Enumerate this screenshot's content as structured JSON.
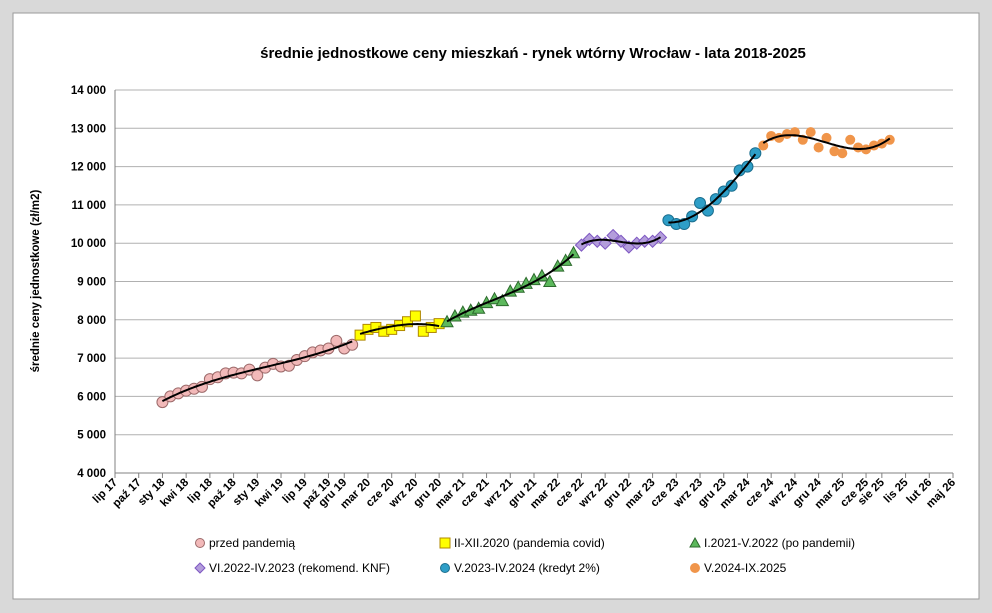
{
  "chart_data": {
    "type": "scatter",
    "title": "średnie jednostkowe ceny mieszkań - rynek wtórny Wrocław - lata 2018-2025",
    "y_label": "średnie ceny jednostkowe (zł/m2)",
    "ylim": [
      4000,
      14000
    ],
    "yticks": [
      {
        "value": 4000,
        "label": "4 000"
      },
      {
        "value": 5000,
        "label": "5 000"
      },
      {
        "value": 6000,
        "label": "6 000"
      },
      {
        "value": 7000,
        "label": "7 000"
      },
      {
        "value": 8000,
        "label": "8 000"
      },
      {
        "value": 9000,
        "label": "9 000"
      },
      {
        "value": 10000,
        "label": "10 000"
      },
      {
        "value": 11000,
        "label": "11 000"
      },
      {
        "value": 12000,
        "label": "12 000"
      },
      {
        "value": 13000,
        "label": "13 000"
      },
      {
        "value": 14000,
        "label": "14 000"
      }
    ],
    "xlim": [
      "2017-07",
      "2026-05"
    ],
    "xticks": [
      {
        "value": "2017-07",
        "label": "lip 17"
      },
      {
        "value": "2017-10",
        "label": "paź 17"
      },
      {
        "value": "2018-01",
        "label": "sty 18"
      },
      {
        "value": "2018-04",
        "label": "kwi 18"
      },
      {
        "value": "2018-07",
        "label": "lip 18"
      },
      {
        "value": "2018-10",
        "label": "paź 18"
      },
      {
        "value": "2019-01",
        "label": "sty 19"
      },
      {
        "value": "2019-04",
        "label": "kwi 19"
      },
      {
        "value": "2019-07",
        "label": "lip 19"
      },
      {
        "value": "2019-10",
        "label": "paź 19"
      },
      {
        "value": "2019-12",
        "label": "gru 19"
      },
      {
        "value": "2020-03",
        "label": "mar 20"
      },
      {
        "value": "2020-06",
        "label": "cze 20"
      },
      {
        "value": "2020-09",
        "label": "wrz 20"
      },
      {
        "value": "2020-12",
        "label": "gru 20"
      },
      {
        "value": "2021-03",
        "label": "mar 21"
      },
      {
        "value": "2021-06",
        "label": "cze 21"
      },
      {
        "value": "2021-09",
        "label": "wrz 21"
      },
      {
        "value": "2021-12",
        "label": "gru 21"
      },
      {
        "value": "2022-03",
        "label": "mar 22"
      },
      {
        "value": "2022-06",
        "label": "cze 22"
      },
      {
        "value": "2022-09",
        "label": "wrz 22"
      },
      {
        "value": "2022-12",
        "label": "gru 22"
      },
      {
        "value": "2023-03",
        "label": "mar 23"
      },
      {
        "value": "2023-06",
        "label": "cze 23"
      },
      {
        "value": "2023-09",
        "label": "wrz 23"
      },
      {
        "value": "2023-12",
        "label": "gru 23"
      },
      {
        "value": "2024-03",
        "label": "mar 24"
      },
      {
        "value": "2024-06",
        "label": "cze 24"
      },
      {
        "value": "2024-09",
        "label": "wrz 24"
      },
      {
        "value": "2024-12",
        "label": "gru 24"
      },
      {
        "value": "2025-03",
        "label": "mar 25"
      },
      {
        "value": "2025-06",
        "label": "cze 25"
      },
      {
        "value": "2025-08",
        "label": "sie 25"
      },
      {
        "value": "2025-11",
        "label": "lis 25"
      },
      {
        "value": "2026-02",
        "label": "lut 26"
      },
      {
        "value": "2026-05",
        "label": "maj 26"
      }
    ],
    "grid": true,
    "trendline": true,
    "series": [
      {
        "name": "przed pandemią",
        "marker": "circle",
        "color": "#f2b9b9",
        "edgecolor": "#9c6a6a",
        "x": [
          "2018-01",
          "2018-02",
          "2018-03",
          "2018-04",
          "2018-05",
          "2018-06",
          "2018-07",
          "2018-08",
          "2018-09",
          "2018-10",
          "2018-11",
          "2018-12",
          "2019-01",
          "2019-02",
          "2019-03",
          "2019-04",
          "2019-05",
          "2019-06",
          "2019-07",
          "2019-08",
          "2019-09",
          "2019-10",
          "2019-11",
          "2019-12",
          "2020-01"
        ],
        "values": [
          5850,
          6000,
          6080,
          6150,
          6200,
          6250,
          6450,
          6500,
          6600,
          6620,
          6600,
          6700,
          6550,
          6750,
          6850,
          6780,
          6800,
          6950,
          7050,
          7150,
          7200,
          7250,
          7450,
          7250,
          7350
        ]
      },
      {
        "name": "II-XII.2020 (pandemia covid)",
        "marker": "square",
        "color": "#ffff00",
        "edgecolor": "#b08800",
        "x": [
          "2020-02",
          "2020-03",
          "2020-04",
          "2020-05",
          "2020-06",
          "2020-07",
          "2020-08",
          "2020-09",
          "2020-10",
          "2020-11",
          "2020-12"
        ],
        "values": [
          7600,
          7750,
          7800,
          7700,
          7750,
          7850,
          7950,
          8100,
          7700,
          7800,
          7900
        ]
      },
      {
        "name": "I.2021-V.2022 (po pandemii)",
        "marker": "triangle",
        "color": "#5cb85c",
        "edgecolor": "#2d6a2d",
        "x": [
          "2021-01",
          "2021-02",
          "2021-03",
          "2021-04",
          "2021-05",
          "2021-06",
          "2021-07",
          "2021-08",
          "2021-09",
          "2021-10",
          "2021-11",
          "2021-12",
          "2022-01",
          "2022-02",
          "2022-03",
          "2022-04",
          "2022-05"
        ],
        "values": [
          7950,
          8100,
          8200,
          8250,
          8300,
          8450,
          8550,
          8500,
          8750,
          8850,
          8950,
          9050,
          9150,
          9000,
          9400,
          9550,
          9750
        ]
      },
      {
        "name": "VI.2022-IV.2023 (rekomend. KNF)",
        "marker": "diamond",
        "color": "#b39ddb",
        "edgecolor": "#7e57c2",
        "x": [
          "2022-06",
          "2022-07",
          "2022-08",
          "2022-09",
          "2022-10",
          "2022-11",
          "2022-12",
          "2023-01",
          "2023-02",
          "2023-03",
          "2023-04"
        ],
        "values": [
          9950,
          10100,
          10050,
          10000,
          10200,
          10050,
          9900,
          10000,
          10050,
          10050,
          10150
        ]
      },
      {
        "name": "V.2023-IV.2024 (kredyt 2%)",
        "marker": "circle",
        "color": "#2e9ec7",
        "edgecolor": "#1b6e8e",
        "x": [
          "2023-05",
          "2023-06",
          "2023-07",
          "2023-08",
          "2023-09",
          "2023-10",
          "2023-11",
          "2023-12",
          "2024-01",
          "2024-02",
          "2024-03",
          "2024-04"
        ],
        "values": [
          10600,
          10500,
          10500,
          10700,
          11050,
          10850,
          11150,
          11350,
          11500,
          11900,
          12000,
          12350
        ]
      },
      {
        "name": "V.2024-IX.2025",
        "marker": "circle",
        "color": "#f0954a",
        "edgecolor": "#f0954a",
        "x": [
          "2024-05",
          "2024-06",
          "2024-07",
          "2024-08",
          "2024-09",
          "2024-10",
          "2024-11",
          "2024-12",
          "2025-01",
          "2025-02",
          "2025-03",
          "2025-04",
          "2025-05",
          "2025-06",
          "2025-07",
          "2025-08",
          "2025-09"
        ],
        "values": [
          12550,
          12800,
          12750,
          12850,
          12900,
          12700,
          12900,
          12500,
          12750,
          12400,
          12350,
          12700,
          12500,
          12450,
          12550,
          12600,
          12700
        ]
      }
    ]
  }
}
